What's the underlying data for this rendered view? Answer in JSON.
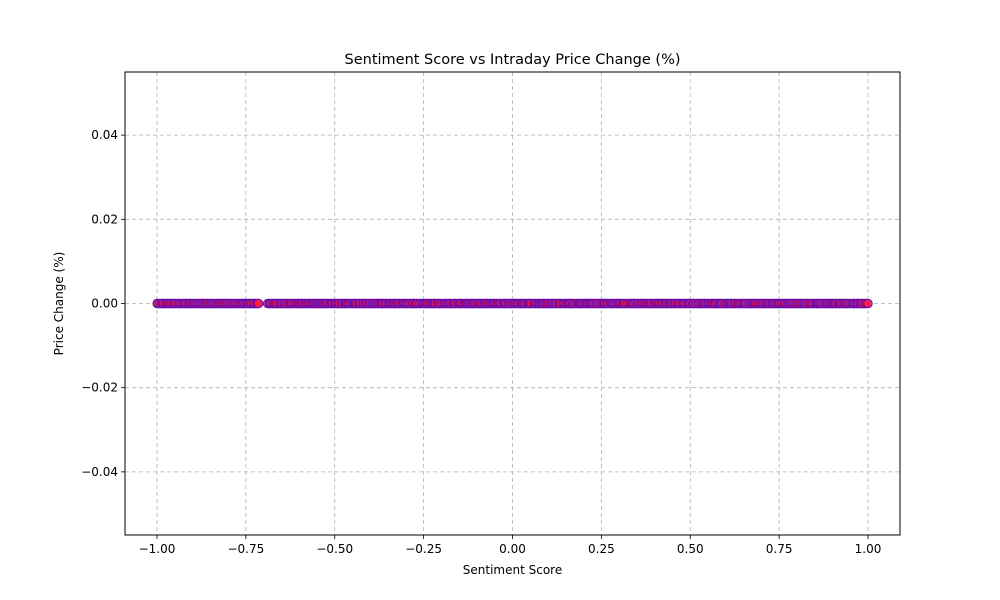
{
  "chart_data": {
    "type": "scatter",
    "title": "Sentiment Score vs Intraday Price Change (%)",
    "xlabel": "Sentiment Score",
    "ylabel": "Price Change (%)",
    "xlim": [
      -1.09,
      1.09
    ],
    "ylim": [
      -0.055,
      0.055
    ],
    "x_ticks": [
      -1.0,
      -0.75,
      -0.5,
      -0.25,
      0.0,
      0.25,
      0.5,
      0.75,
      1.0
    ],
    "x_tick_labels": [
      "−1.00",
      "−0.75",
      "−0.50",
      "−0.25",
      "0.00",
      "0.25",
      "0.50",
      "0.75",
      "1.00"
    ],
    "y_ticks": [
      -0.04,
      -0.02,
      0.0,
      0.02,
      0.04
    ],
    "y_tick_labels": [
      "−0.04",
      "−0.02",
      "0.00",
      "0.02",
      "0.04"
    ],
    "grid": true,
    "legend": "none",
    "colors": {
      "marker_fill": "#ff1f3d",
      "marker_edge": "#6a0dad",
      "grid": "#b0b0b0",
      "axes": "#000000"
    },
    "series": [
      {
        "x_range": [
          -1.0,
          1.0
        ],
        "x_gaps": [
          [
            -0.71,
            -0.69
          ]
        ],
        "y_constant": 0.0,
        "point_count": 600
      }
    ]
  }
}
